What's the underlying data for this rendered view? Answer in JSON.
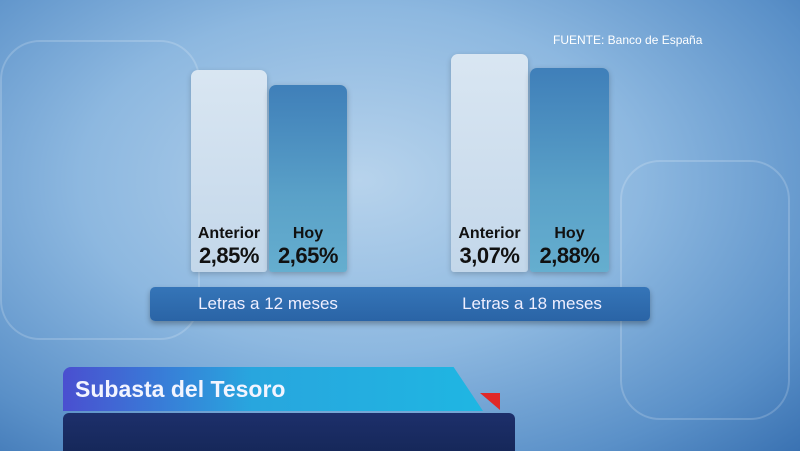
{
  "source": "FUENTE: Banco de España",
  "ticker": {
    "title": "Subasta del Tesoro"
  },
  "colors": {
    "anterior": "#d3e2f0",
    "hoy": "#4f92c2",
    "category_bar": "#2f6cb0",
    "ticker": "#28a6de",
    "accent_red": "#e02828"
  },
  "chart_data": {
    "type": "bar",
    "categories": [
      "Letras a 12 meses",
      "Letras a 18 meses"
    ],
    "series": [
      {
        "name": "Anterior",
        "values": [
          2.85,
          3.07
        ],
        "labels": [
          "2,85%",
          "3,07%"
        ]
      },
      {
        "name": "Hoy",
        "values": [
          2.65,
          2.88
        ],
        "labels": [
          "2,65%",
          "2,88%"
        ]
      }
    ],
    "unit": "%",
    "grid": false
  }
}
